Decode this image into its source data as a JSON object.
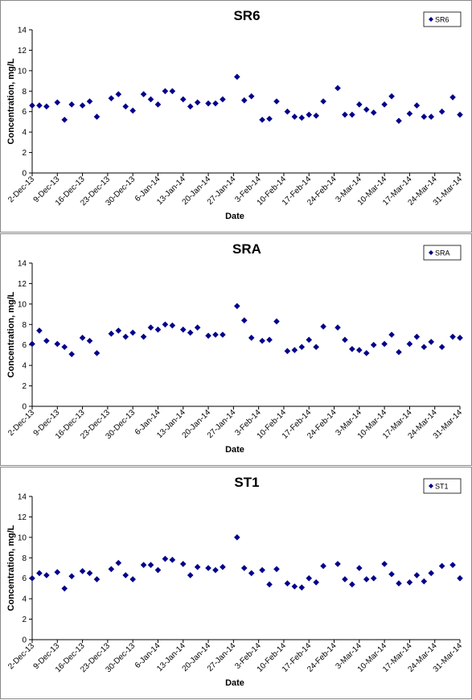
{
  "chart_data": [
    {
      "type": "scatter",
      "title": "SR6",
      "xlabel": "Date",
      "ylabel": "Concentration, mg/L",
      "x": [
        "2013-12-02",
        "2013-12-04",
        "2013-12-06",
        "2013-12-09",
        "2013-12-11",
        "2013-12-13",
        "2013-12-16",
        "2013-12-18",
        "2013-12-20",
        "2013-12-24",
        "2013-12-26",
        "2013-12-28",
        "2013-12-30",
        "2014-01-02",
        "2014-01-04",
        "2014-01-06",
        "2014-01-08",
        "2014-01-10",
        "2014-01-13",
        "2014-01-15",
        "2014-01-17",
        "2014-01-20",
        "2014-01-22",
        "2014-01-24",
        "2014-01-28",
        "2014-01-30",
        "2014-02-01",
        "2014-02-04",
        "2014-02-06",
        "2014-02-08",
        "2014-02-11",
        "2014-02-13",
        "2014-02-15",
        "2014-02-17",
        "2014-02-19",
        "2014-02-21",
        "2014-02-25",
        "2014-02-27",
        "2014-03-01",
        "2014-03-03",
        "2014-03-05",
        "2014-03-07",
        "2014-03-10",
        "2014-03-12",
        "2014-03-14",
        "2014-03-17",
        "2014-03-19",
        "2014-03-21",
        "2014-03-23",
        "2014-03-26",
        "2014-03-29",
        "2014-03-31"
      ],
      "series": [
        {
          "name": "SR6",
          "color": "#00008b",
          "marker": "diamond",
          "values": [
            6.6,
            6.6,
            6.5,
            6.9,
            5.2,
            6.7,
            6.6,
            7.0,
            5.5,
            7.3,
            7.7,
            6.5,
            6.1,
            7.7,
            7.2,
            6.7,
            8.0,
            8.0,
            7.2,
            6.5,
            6.9,
            6.8,
            6.8,
            7.2,
            9.4,
            7.1,
            7.5,
            5.2,
            5.3,
            7.0,
            6.0,
            5.5,
            5.4,
            5.7,
            5.6,
            7.0,
            8.3,
            5.7,
            5.7,
            6.7,
            6.2,
            5.9,
            6.7,
            7.5,
            5.1,
            5.8,
            6.6,
            5.5,
            5.5,
            6.0,
            7.4,
            5.7
          ]
        }
      ],
      "xlim": [
        "2013-12-02",
        "2014-03-31"
      ],
      "xticks": [
        {
          "value": "2013-12-02",
          "label": "2-Dec-13"
        },
        {
          "value": "2013-12-09",
          "label": "9-Dec-13"
        },
        {
          "value": "2013-12-16",
          "label": "16-Dec-13"
        },
        {
          "value": "2013-12-23",
          "label": "23-Dec-13"
        },
        {
          "value": "2013-12-30",
          "label": "30-Dec-13"
        },
        {
          "value": "2014-01-06",
          "label": "6-Jan-14"
        },
        {
          "value": "2014-01-13",
          "label": "13-Jan-14"
        },
        {
          "value": "2014-01-20",
          "label": "20-Jan-14"
        },
        {
          "value": "2014-01-27",
          "label": "27-Jan-14"
        },
        {
          "value": "2014-02-03",
          "label": "3-Feb-14"
        },
        {
          "value": "2014-02-10",
          "label": "10-Feb-14"
        },
        {
          "value": "2014-02-17",
          "label": "17-Feb-14"
        },
        {
          "value": "2014-02-24",
          "label": "24-Feb-14"
        },
        {
          "value": "2014-03-03",
          "label": "3-Mar-14"
        },
        {
          "value": "2014-03-10",
          "label": "10-Mar-14"
        },
        {
          "value": "2014-03-17",
          "label": "17-Mar-14"
        },
        {
          "value": "2014-03-24",
          "label": "24-Mar-14"
        },
        {
          "value": "2014-03-31",
          "label": "31-Mar-14"
        }
      ],
      "ylim": [
        0,
        14
      ],
      "yticks": [
        0,
        2,
        4,
        6,
        8,
        10,
        12,
        14
      ],
      "grid": false,
      "legend": "upper right"
    },
    {
      "type": "scatter",
      "title": "SRA",
      "xlabel": "Date",
      "ylabel": "Concentration, mg/L",
      "x": [
        "2013-12-02",
        "2013-12-04",
        "2013-12-06",
        "2013-12-09",
        "2013-12-11",
        "2013-12-13",
        "2013-12-16",
        "2013-12-18",
        "2013-12-20",
        "2013-12-24",
        "2013-12-26",
        "2013-12-28",
        "2013-12-30",
        "2014-01-02",
        "2014-01-04",
        "2014-01-06",
        "2014-01-08",
        "2014-01-10",
        "2014-01-13",
        "2014-01-15",
        "2014-01-17",
        "2014-01-20",
        "2014-01-22",
        "2014-01-24",
        "2014-01-28",
        "2014-01-30",
        "2014-02-01",
        "2014-02-04",
        "2014-02-06",
        "2014-02-08",
        "2014-02-11",
        "2014-02-13",
        "2014-02-15",
        "2014-02-17",
        "2014-02-19",
        "2014-02-21",
        "2014-02-25",
        "2014-02-27",
        "2014-03-01",
        "2014-03-03",
        "2014-03-05",
        "2014-03-07",
        "2014-03-10",
        "2014-03-12",
        "2014-03-14",
        "2014-03-17",
        "2014-03-19",
        "2014-03-21",
        "2014-03-23",
        "2014-03-26",
        "2014-03-29",
        "2014-03-31"
      ],
      "series": [
        {
          "name": "SRA",
          "color": "#00008b",
          "marker": "diamond",
          "values": [
            6.1,
            7.4,
            6.4,
            6.1,
            5.8,
            5.1,
            6.7,
            6.4,
            5.2,
            7.1,
            7.4,
            6.8,
            7.2,
            6.8,
            7.7,
            7.5,
            8.0,
            7.9,
            7.5,
            7.2,
            7.7,
            6.9,
            7.0,
            7.0,
            9.8,
            8.4,
            6.7,
            6.4,
            6.5,
            8.3,
            5.4,
            5.5,
            5.8,
            6.5,
            5.8,
            7.8,
            7.7,
            6.5,
            5.6,
            5.5,
            5.2,
            6.0,
            6.1,
            7.0,
            5.3,
            6.1,
            6.8,
            5.8,
            6.3,
            5.8,
            6.8,
            6.7
          ]
        }
      ],
      "xlim": [
        "2013-12-02",
        "2014-03-31"
      ],
      "xticks": [
        {
          "value": "2013-12-02",
          "label": "2-Dec-13"
        },
        {
          "value": "2013-12-09",
          "label": "9-Dec-13"
        },
        {
          "value": "2013-12-16",
          "label": "16-Dec-13"
        },
        {
          "value": "2013-12-23",
          "label": "23-Dec-13"
        },
        {
          "value": "2013-12-30",
          "label": "30-Dec-13"
        },
        {
          "value": "2014-01-06",
          "label": "6-Jan-14"
        },
        {
          "value": "2014-01-13",
          "label": "13-Jan-14"
        },
        {
          "value": "2014-01-20",
          "label": "20-Jan-14"
        },
        {
          "value": "2014-01-27",
          "label": "27-Jan-14"
        },
        {
          "value": "2014-02-03",
          "label": "3-Feb-14"
        },
        {
          "value": "2014-02-10",
          "label": "10-Feb-14"
        },
        {
          "value": "2014-02-17",
          "label": "17-Feb-14"
        },
        {
          "value": "2014-02-24",
          "label": "24-Feb-14"
        },
        {
          "value": "2014-03-03",
          "label": "3-Mar-14"
        },
        {
          "value": "2014-03-10",
          "label": "10-Mar-14"
        },
        {
          "value": "2014-03-17",
          "label": "17-Mar-14"
        },
        {
          "value": "2014-03-24",
          "label": "24-Mar-14"
        },
        {
          "value": "2014-03-31",
          "label": "31-Mar-14"
        }
      ],
      "ylim": [
        0,
        14
      ],
      "yticks": [
        0,
        2,
        4,
        6,
        8,
        10,
        12,
        14
      ],
      "grid": false,
      "legend": "upper right"
    },
    {
      "type": "scatter",
      "title": "ST1",
      "xlabel": "Date",
      "ylabel": "Concentration, mg/L",
      "x": [
        "2013-12-02",
        "2013-12-04",
        "2013-12-06",
        "2013-12-09",
        "2013-12-11",
        "2013-12-13",
        "2013-12-16",
        "2013-12-18",
        "2013-12-20",
        "2013-12-24",
        "2013-12-26",
        "2013-12-28",
        "2013-12-30",
        "2014-01-02",
        "2014-01-04",
        "2014-01-06",
        "2014-01-08",
        "2014-01-10",
        "2014-01-13",
        "2014-01-15",
        "2014-01-17",
        "2014-01-20",
        "2014-01-22",
        "2014-01-24",
        "2014-01-28",
        "2014-01-30",
        "2014-02-01",
        "2014-02-04",
        "2014-02-06",
        "2014-02-08",
        "2014-02-11",
        "2014-02-13",
        "2014-02-15",
        "2014-02-17",
        "2014-02-19",
        "2014-02-21",
        "2014-02-25",
        "2014-02-27",
        "2014-03-01",
        "2014-03-03",
        "2014-03-05",
        "2014-03-07",
        "2014-03-10",
        "2014-03-12",
        "2014-03-14",
        "2014-03-17",
        "2014-03-19",
        "2014-03-21",
        "2014-03-23",
        "2014-03-26",
        "2014-03-29",
        "2014-03-31"
      ],
      "series": [
        {
          "name": "ST1",
          "color": "#00008b",
          "marker": "diamond",
          "values": [
            6.0,
            6.5,
            6.3,
            6.6,
            5.0,
            6.2,
            6.7,
            6.5,
            5.9,
            6.9,
            7.5,
            6.3,
            5.9,
            7.3,
            7.3,
            6.8,
            7.9,
            7.8,
            7.4,
            6.3,
            7.1,
            7.0,
            6.8,
            7.1,
            10.0,
            7.0,
            6.5,
            6.8,
            5.4,
            6.9,
            5.5,
            5.2,
            5.1,
            6.0,
            5.6,
            7.2,
            7.4,
            5.9,
            5.4,
            7.0,
            5.9,
            6.0,
            7.4,
            6.4,
            5.5,
            5.6,
            6.3,
            5.7,
            6.5,
            7.2,
            7.3,
            6.0
          ]
        }
      ],
      "xlim": [
        "2013-12-02",
        "2014-03-31"
      ],
      "xticks": [
        {
          "value": "2013-12-02",
          "label": "2-Dec-13"
        },
        {
          "value": "2013-12-09",
          "label": "9-Dec-13"
        },
        {
          "value": "2013-12-16",
          "label": "16-Dec-13"
        },
        {
          "value": "2013-12-23",
          "label": "23-Dec-13"
        },
        {
          "value": "2013-12-30",
          "label": "30-Dec-13"
        },
        {
          "value": "2014-01-06",
          "label": "6-Jan-14"
        },
        {
          "value": "2014-01-13",
          "label": "13-Jan-14"
        },
        {
          "value": "2014-01-20",
          "label": "20-Jan-14"
        },
        {
          "value": "2014-01-27",
          "label": "27-Jan-14"
        },
        {
          "value": "2014-02-03",
          "label": "3-Feb-14"
        },
        {
          "value": "2014-02-10",
          "label": "10-Feb-14"
        },
        {
          "value": "2014-02-17",
          "label": "17-Feb-14"
        },
        {
          "value": "2014-02-24",
          "label": "24-Feb-14"
        },
        {
          "value": "2014-03-03",
          "label": "3-Mar-14"
        },
        {
          "value": "2014-03-10",
          "label": "10-Mar-14"
        },
        {
          "value": "2014-03-17",
          "label": "17-Mar-14"
        },
        {
          "value": "2014-03-24",
          "label": "24-Mar-14"
        },
        {
          "value": "2014-03-31",
          "label": "31-Mar-14"
        }
      ],
      "ylim": [
        0,
        14
      ],
      "yticks": [
        0,
        2,
        4,
        6,
        8,
        10,
        12,
        14
      ],
      "grid": false,
      "legend": "upper right"
    }
  ]
}
